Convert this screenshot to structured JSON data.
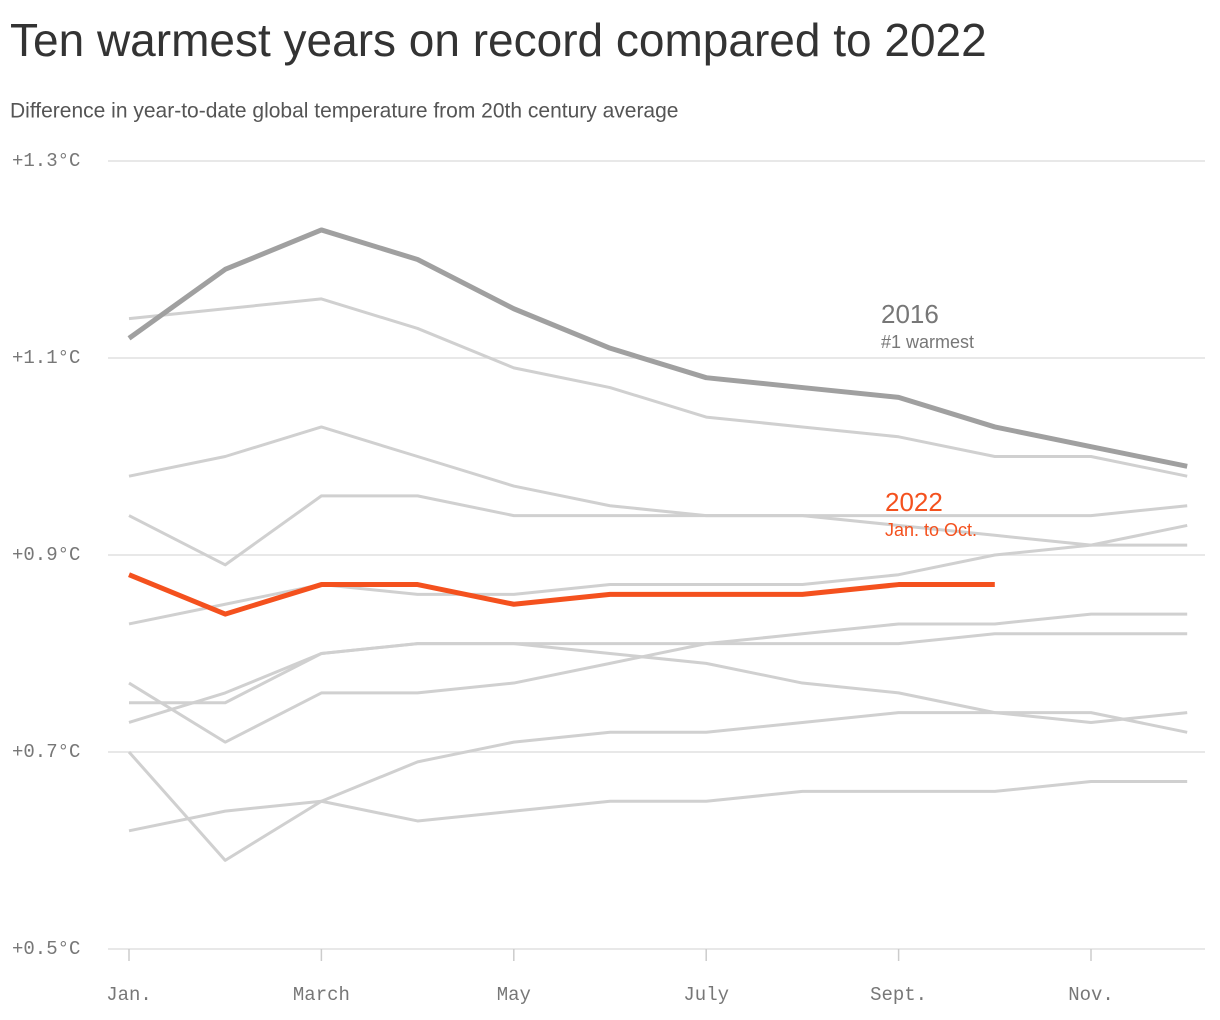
{
  "chart_data": {
    "type": "line",
    "title": "Ten warmest years on record compared to 2022",
    "subtitle": "Difference in year-to-date global temperature from 20th century average",
    "categories": [
      "Jan.",
      null,
      "March",
      null,
      "May",
      null,
      "July",
      null,
      "Sept.",
      null,
      "Nov.",
      null
    ],
    "ylim": [
      0.5,
      1.3
    ],
    "yticks": [
      {
        "value": 0.5,
        "label": "+0.5°C"
      },
      {
        "value": 0.7,
        "label": "+0.7°C"
      },
      {
        "value": 0.9,
        "label": "+0.9°C"
      },
      {
        "value": 1.1,
        "label": "+1.1°C"
      },
      {
        "value": 1.3,
        "label": "+1.3°C"
      }
    ],
    "grid": true,
    "series": [
      {
        "color": "#d0d0d0",
        "values": [
          1.14,
          1.15,
          1.16,
          1.13,
          1.09,
          1.07,
          1.04,
          1.03,
          1.02,
          1.0,
          1.0,
          0.98
        ]
      },
      {
        "color": "#d0d0d0",
        "values": [
          0.98,
          1.0,
          1.03,
          1.0,
          0.97,
          0.95,
          0.94,
          0.94,
          0.94,
          0.94,
          0.94,
          0.95
        ]
      },
      {
        "color": "#d0d0d0",
        "values": [
          0.94,
          0.89,
          0.96,
          0.96,
          0.94,
          0.94,
          0.94,
          0.94,
          0.93,
          0.92,
          0.91,
          0.91
        ]
      },
      {
        "color": "#d0d0d0",
        "values": [
          0.83,
          0.85,
          0.87,
          0.86,
          0.86,
          0.87,
          0.87,
          0.87,
          0.88,
          0.9,
          0.91,
          0.93
        ]
      },
      {
        "color": "#d0d0d0",
        "values": [
          0.75,
          0.75,
          0.8,
          0.81,
          0.81,
          0.81,
          0.81,
          0.81,
          0.81,
          0.82,
          0.82,
          0.82
        ]
      },
      {
        "color": "#d0d0d0",
        "values": [
          0.73,
          0.76,
          0.8,
          0.81,
          0.81,
          0.8,
          0.79,
          0.77,
          0.76,
          0.74,
          0.74,
          0.72
        ]
      },
      {
        "color": "#d0d0d0",
        "values": [
          0.77,
          0.71,
          0.76,
          0.76,
          0.77,
          0.79,
          0.81,
          0.82,
          0.83,
          0.83,
          0.84,
          0.84
        ]
      },
      {
        "color": "#d0d0d0",
        "values": [
          0.7,
          0.59,
          0.65,
          0.69,
          0.71,
          0.72,
          0.72,
          0.73,
          0.74,
          0.74,
          0.73,
          0.74
        ]
      },
      {
        "color": "#d0d0d0",
        "values": [
          0.62,
          0.64,
          0.65,
          0.63,
          0.64,
          0.65,
          0.65,
          0.66,
          0.66,
          0.66,
          0.67,
          0.67
        ]
      },
      {
        "name": "2016",
        "annotation": "#1 warmest",
        "color": "#a0a0a0",
        "values": [
          1.12,
          1.19,
          1.23,
          1.2,
          1.15,
          1.11,
          1.08,
          1.07,
          1.06,
          1.03,
          1.01,
          0.99
        ]
      },
      {
        "name": "2022",
        "annotation": "Jan. to Oct.",
        "color": "#f4511e",
        "values": [
          0.88,
          0.84,
          0.87,
          0.87,
          0.85,
          0.86,
          0.86,
          0.86,
          0.87,
          0.87,
          null,
          null
        ]
      }
    ]
  }
}
